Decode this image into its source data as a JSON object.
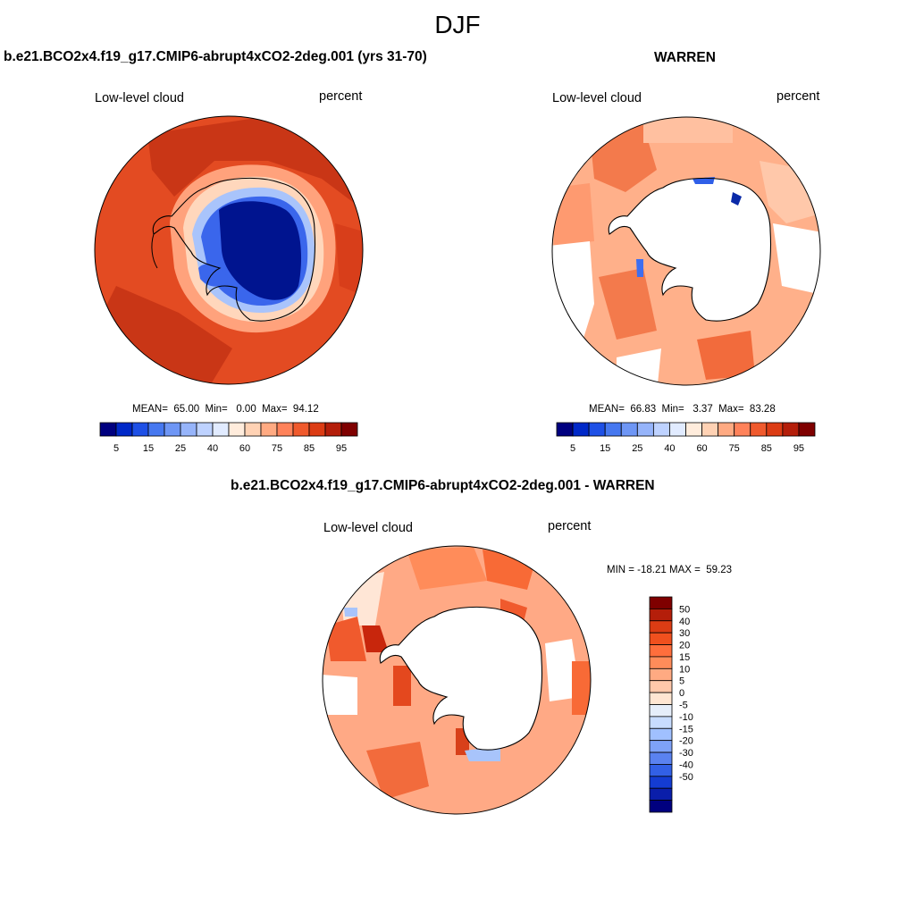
{
  "figure": {
    "title": "DJF",
    "variable_label": "Low-level cloud",
    "units_label": "percent"
  },
  "panels": {
    "model": {
      "title": "b.e21.BCO2x4.f19_g17.CMIP6-abrupt4xCO2-2deg.001 (yrs 31-70)",
      "variable_label": "Low-level cloud",
      "units_label": "percent",
      "stats_line": "MEAN=  65.00  Min=   0.00  Max=  94.12"
    },
    "obs": {
      "title": "WARREN",
      "variable_label": "Low-level cloud",
      "units_label": "percent",
      "stats_line": "MEAN=  66.83  Min=   3.37  Max=  83.28"
    },
    "diff": {
      "title": "b.e21.BCO2x4.f19_g17.CMIP6-abrupt4xCO2-2deg.001 - WARREN",
      "variable_label": "Low-level cloud",
      "units_label": "percent",
      "stats_line": "MIN = -18.21 MAX =  59.23"
    }
  },
  "chart_data": [
    {
      "type": "heatmap",
      "name": "model",
      "projection": "south-polar-stereographic",
      "title": "b.e21.BCO2x4.f19_g17.CMIP6-abrupt4xCO2-2deg.001 (yrs 31-70)",
      "variable": "Low-level cloud",
      "units": "percent",
      "mean": 65.0,
      "min": 0.0,
      "max": 94.12,
      "colorbar": {
        "orientation": "horizontal",
        "tick_labels": [
          "5",
          "15",
          "25",
          "40",
          "60",
          "75",
          "85",
          "95"
        ],
        "colors": [
          "#00007f",
          "#0028c8",
          "#1e50e6",
          "#4678f0",
          "#6e96f5",
          "#96b4fa",
          "#bed2ff",
          "#e1ebff",
          "#ffecdc",
          "#ffd2b4",
          "#ffaa82",
          "#ff825a",
          "#f05a2d",
          "#dc3c14",
          "#b41e0a",
          "#7f0000"
        ]
      }
    },
    {
      "type": "heatmap",
      "name": "obs",
      "projection": "south-polar-stereographic",
      "title": "WARREN",
      "variable": "Low-level cloud",
      "units": "percent",
      "mean": 66.83,
      "min": 3.37,
      "max": 83.28,
      "colorbar": {
        "orientation": "horizontal",
        "tick_labels": [
          "5",
          "15",
          "25",
          "40",
          "60",
          "75",
          "85",
          "95"
        ],
        "colors": [
          "#00007f",
          "#0028c8",
          "#1e50e6",
          "#4678f0",
          "#6e96f5",
          "#96b4fa",
          "#bed2ff",
          "#e1ebff",
          "#ffecdc",
          "#ffd2b4",
          "#ffaa82",
          "#ff825a",
          "#f05a2d",
          "#dc3c14",
          "#b41e0a",
          "#7f0000"
        ]
      }
    },
    {
      "type": "heatmap",
      "name": "difference",
      "projection": "south-polar-stereographic",
      "title": "b.e21.BCO2x4.f19_g17.CMIP6-abrupt4xCO2-2deg.001 - WARREN",
      "variable": "Low-level cloud",
      "units": "percent",
      "min": -18.21,
      "max": 59.23,
      "colorbar": {
        "orientation": "vertical",
        "tick_labels": [
          "50",
          "40",
          "30",
          "20",
          "15",
          "10",
          "5",
          "0",
          "-5",
          "-10",
          "-15",
          "-20",
          "-30",
          "-40",
          "-50"
        ],
        "colors": [
          "#7f0000",
          "#b41e0a",
          "#dc3c14",
          "#f0501e",
          "#ff6e3c",
          "#ff8c5a",
          "#ffaa82",
          "#ffc8aa",
          "#ffe6d2",
          "#e6eefa",
          "#c8dcff",
          "#a0c0ff",
          "#7ea2f8",
          "#5a82f0",
          "#3260e6",
          "#143cd2",
          "#0a1eaa",
          "#00007f"
        ]
      }
    }
  ]
}
